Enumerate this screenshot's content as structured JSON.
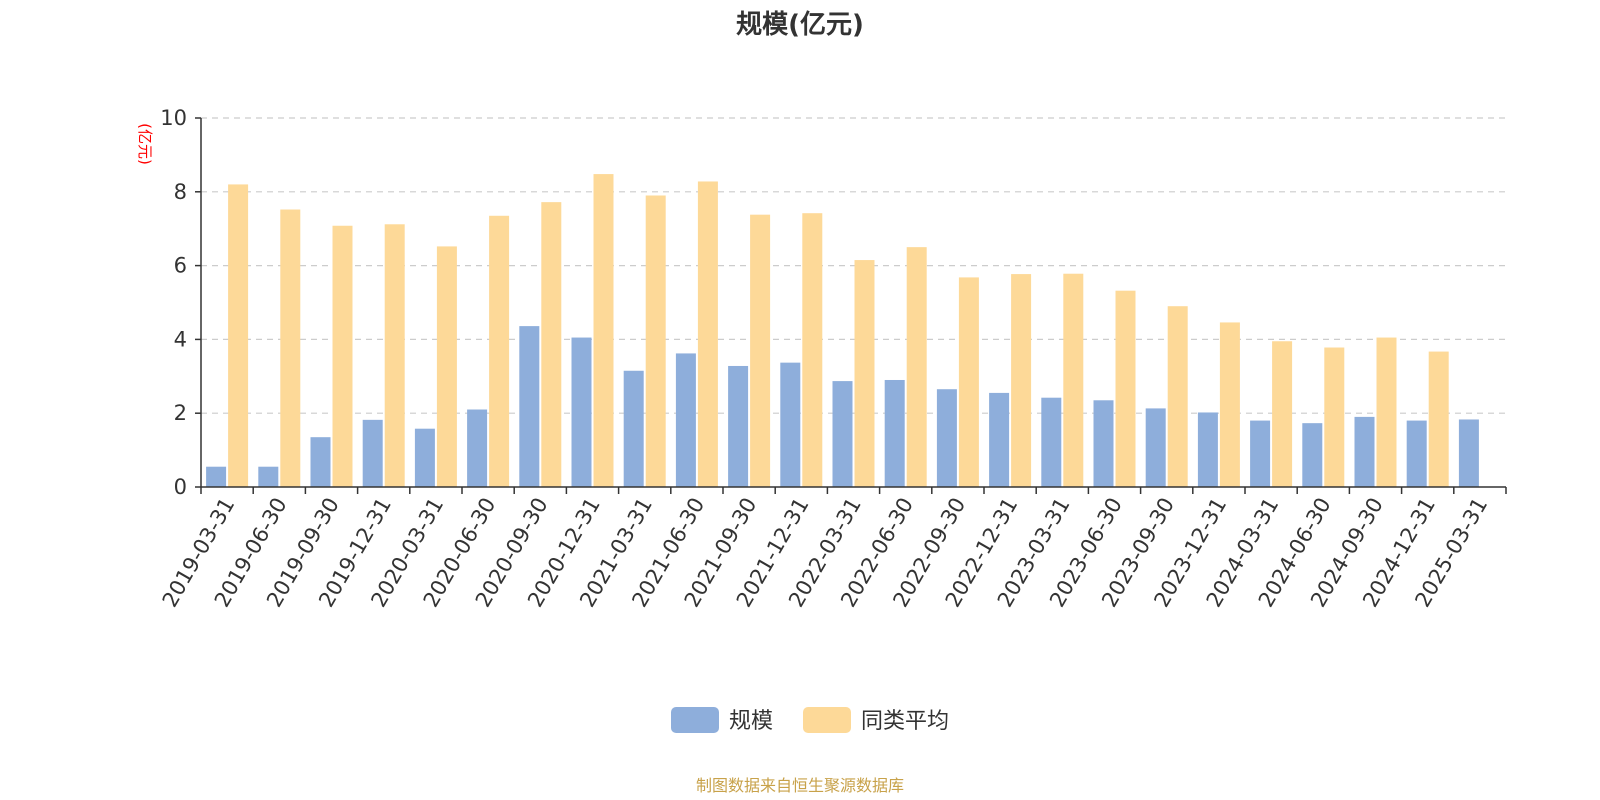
{
  "footer": {
    "text": "制图数据来自恒生聚源数据库",
    "color": "#c8a24a"
  },
  "colors": {
    "axis": "#333333",
    "grid": "#cccccc",
    "ylabel": "#ff0000"
  },
  "chart_data": {
    "type": "bar",
    "title": "规模(亿元)",
    "xlabel": "",
    "ylabel": "(亿元)",
    "ylim": [
      0,
      10
    ],
    "yticks": [
      0,
      2,
      4,
      6,
      8,
      10
    ],
    "grid": true,
    "legend_position": "bottom-center",
    "categories": [
      "2019-03-31",
      "2019-06-30",
      "2019-09-30",
      "2019-12-31",
      "2020-03-31",
      "2020-06-30",
      "2020-09-30",
      "2020-12-31",
      "2021-03-31",
      "2021-06-30",
      "2021-09-30",
      "2021-12-31",
      "2022-03-31",
      "2022-06-30",
      "2022-09-30",
      "2022-12-31",
      "2023-03-31",
      "2023-06-30",
      "2023-09-30",
      "2023-12-31",
      "2024-03-31",
      "2024-06-30",
      "2024-09-30",
      "2024-12-31",
      "2025-03-31"
    ],
    "series": [
      {
        "name": "规模",
        "color": "#8eaedb",
        "values": [
          0.55,
          0.55,
          1.35,
          1.82,
          1.58,
          2.1,
          4.36,
          4.05,
          3.15,
          3.62,
          3.28,
          3.37,
          2.87,
          2.9,
          2.65,
          2.55,
          2.42,
          2.35,
          2.13,
          2.02,
          1.8,
          1.73,
          1.9,
          1.8,
          1.83
        ]
      },
      {
        "name": "同类平均",
        "color": "#fdd998",
        "values": [
          8.2,
          7.52,
          7.08,
          7.12,
          6.52,
          7.35,
          7.72,
          8.48,
          7.9,
          8.28,
          7.38,
          7.42,
          6.15,
          6.5,
          5.68,
          5.77,
          5.78,
          5.32,
          4.9,
          4.46,
          3.95,
          3.78,
          4.05,
          3.67,
          null
        ]
      }
    ]
  }
}
